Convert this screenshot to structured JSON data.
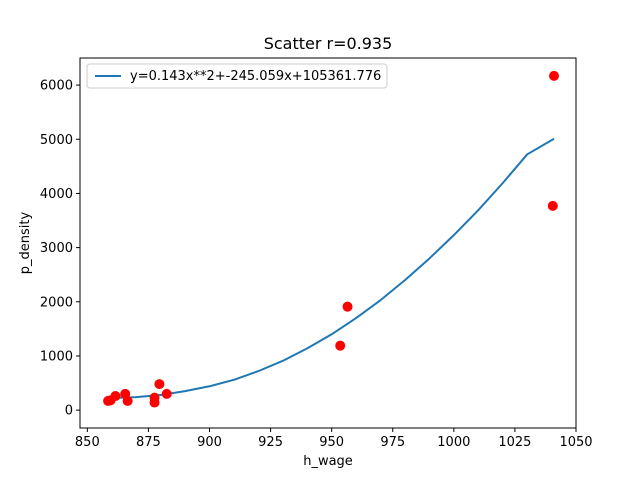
{
  "chart_data": {
    "type": "scatter",
    "title": "Scatter r=0.935",
    "xlabel": "h_wage",
    "ylabel": "p_density",
    "xlim": [
      847,
      1050
    ],
    "ylim": [
      -330,
      6500
    ],
    "xticks": [
      850,
      875,
      900,
      925,
      950,
      975,
      1000,
      1025,
      1050
    ],
    "yticks": [
      0,
      1000,
      2000,
      3000,
      4000,
      5000,
      6000
    ],
    "grid": false,
    "legend_position": "top-left",
    "colors": {
      "points": "#ff0000",
      "fit_line": "#1f77b4"
    },
    "series": [
      {
        "kind": "scatter",
        "points": [
          {
            "x": 858.5,
            "y": 170
          },
          {
            "x": 859.5,
            "y": 180
          },
          {
            "x": 861.5,
            "y": 260
          },
          {
            "x": 865.5,
            "y": 300
          },
          {
            "x": 866.5,
            "y": 170
          },
          {
            "x": 877.5,
            "y": 140
          },
          {
            "x": 877.5,
            "y": 230
          },
          {
            "x": 879.5,
            "y": 480
          },
          {
            "x": 882.5,
            "y": 300
          },
          {
            "x": 953.5,
            "y": 1190
          },
          {
            "x": 956.5,
            "y": 1910
          },
          {
            "x": 1040.5,
            "y": 3770
          },
          {
            "x": 1041.0,
            "y": 6170
          }
        ]
      },
      {
        "kind": "line",
        "name": "y=0.143x**2+-245.059x+105361.776",
        "points": [
          {
            "x": 858.5,
            "y": 220
          },
          {
            "x": 870,
            "y": 240
          },
          {
            "x": 880,
            "y": 280
          },
          {
            "x": 890,
            "y": 350
          },
          {
            "x": 900,
            "y": 440
          },
          {
            "x": 910,
            "y": 560
          },
          {
            "x": 920,
            "y": 720
          },
          {
            "x": 930,
            "y": 910
          },
          {
            "x": 940,
            "y": 1140
          },
          {
            "x": 950,
            "y": 1400
          },
          {
            "x": 960,
            "y": 1700
          },
          {
            "x": 970,
            "y": 2030
          },
          {
            "x": 980,
            "y": 2400
          },
          {
            "x": 990,
            "y": 2800
          },
          {
            "x": 1000,
            "y": 3230
          },
          {
            "x": 1010,
            "y": 3690
          },
          {
            "x": 1020,
            "y": 4190
          },
          {
            "x": 1030,
            "y": 4720
          },
          {
            "x": 1041,
            "y": 5010
          }
        ]
      }
    ]
  }
}
